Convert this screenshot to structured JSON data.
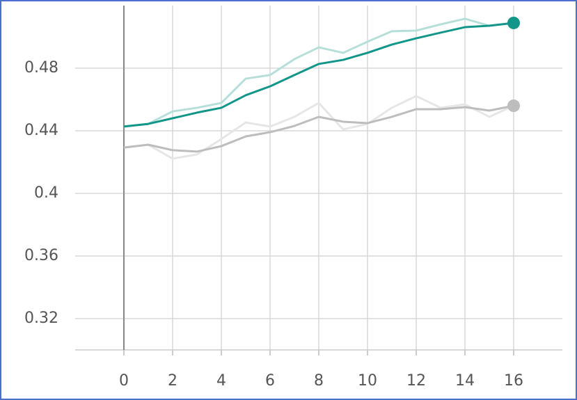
{
  "chart_data": {
    "type": "line",
    "x": [
      0,
      1,
      2,
      3,
      4,
      5,
      6,
      7,
      8,
      9,
      10,
      11,
      12,
      13,
      14,
      15,
      16
    ],
    "series": [
      {
        "color": "#b7dfd9",
        "values": [
          0.4427,
          0.4444,
          0.4524,
          0.4547,
          0.4578,
          0.4733,
          0.4756,
          0.4858,
          0.4933,
          0.4898,
          0.4969,
          0.5036,
          0.504,
          0.508,
          0.5116,
          0.5071,
          0.5089
        ]
      },
      {
        "color": "#e6e6e6",
        "values": [
          0.4293,
          0.4311,
          0.4222,
          0.4249,
          0.4347,
          0.4453,
          0.4427,
          0.4489,
          0.4578,
          0.4409,
          0.4444,
          0.4547,
          0.4622,
          0.4547,
          0.4569,
          0.4489,
          0.456
        ]
      },
      {
        "color": "#bdbdbd",
        "end_marker": true,
        "values": [
          0.4293,
          0.4311,
          0.4276,
          0.4267,
          0.4302,
          0.4364,
          0.4391,
          0.4431,
          0.4489,
          0.4458,
          0.4449,
          0.4489,
          0.4538,
          0.4538,
          0.4551,
          0.4529,
          0.456
        ]
      },
      {
        "color": "#12968a",
        "end_marker": true,
        "values": [
          0.4427,
          0.4444,
          0.448,
          0.4516,
          0.4547,
          0.4627,
          0.4684,
          0.4756,
          0.4827,
          0.4853,
          0.4898,
          0.4951,
          0.4991,
          0.5027,
          0.5062,
          0.5071,
          0.5089
        ]
      }
    ],
    "xlim": [
      -2,
      18
    ],
    "xticks": [
      0,
      2,
      4,
      6,
      8,
      10,
      12,
      14,
      16
    ],
    "ylim": [
      0.3,
      0.52
    ],
    "yticks": [
      0.32,
      0.36,
      0.4,
      0.44,
      0.48
    ],
    "grid": true
  }
}
